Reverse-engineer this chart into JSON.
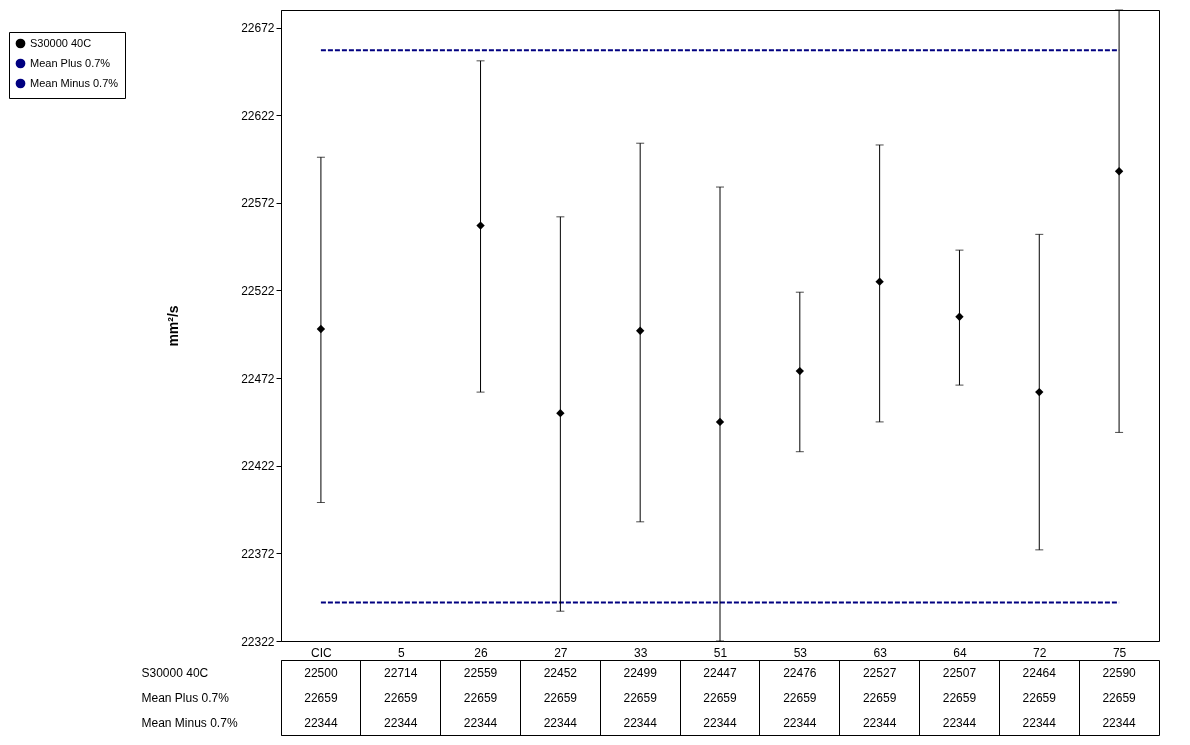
{
  "chart_data": {
    "type": "scatter",
    "ylabel": "mm²/s",
    "categories": [
      "CIC",
      "5",
      "26",
      "27",
      "33",
      "51",
      "53",
      "63",
      "64",
      "72",
      "75"
    ],
    "ylim": [
      22322,
      22682
    ],
    "yticks": [
      22322,
      22372,
      22422,
      22472,
      22522,
      22572,
      22622,
      22672
    ],
    "legend": "top left",
    "marker": "diamond",
    "series": [
      {
        "name": "S30000 40C",
        "color": "#000000",
        "values": [
          22500,
          null,
          22559,
          22452,
          22499,
          22447,
          22476,
          22527,
          22507,
          22464,
          22590
        ],
        "errors": [
          [
            22401,
            22598
          ],
          null,
          [
            22464,
            22653
          ],
          [
            22339,
            22564
          ],
          [
            22390,
            22606
          ],
          [
            22322,
            22581
          ],
          [
            22430,
            22521
          ],
          [
            22447,
            22605
          ],
          [
            22468,
            22545
          ],
          [
            22374,
            22554
          ],
          [
            22441,
            22682
          ]
        ],
        "value_labels": [
          "22500",
          "22714",
          "22559",
          "22452",
          "22499",
          "22447",
          "22476",
          "22527",
          "22507",
          "22464",
          "22590"
        ]
      },
      {
        "name": "Mean Plus 0.7%",
        "type": "line",
        "marker": "none",
        "line_style": "dashed",
        "color": "#000080",
        "values": [
          22659,
          22659,
          22659,
          22659,
          22659,
          22659,
          22659,
          22659,
          22659,
          22659,
          22659
        ],
        "value_labels": [
          "22659",
          "22659",
          "22659",
          "22659",
          "22659",
          "22659",
          "22659",
          "22659",
          "22659",
          "22659",
          "22659"
        ]
      },
      {
        "name": "Mean Minus 0.7%",
        "type": "line",
        "marker": "none",
        "line_style": "dashed",
        "color": "#000080",
        "values": [
          22344,
          22344,
          22344,
          22344,
          22344,
          22344,
          22344,
          22344,
          22344,
          22344,
          22344
        ],
        "value_labels": [
          "22344",
          "22344",
          "22344",
          "22344",
          "22344",
          "22344",
          "22344",
          "22344",
          "22344",
          "22344",
          "22344"
        ]
      }
    ]
  }
}
